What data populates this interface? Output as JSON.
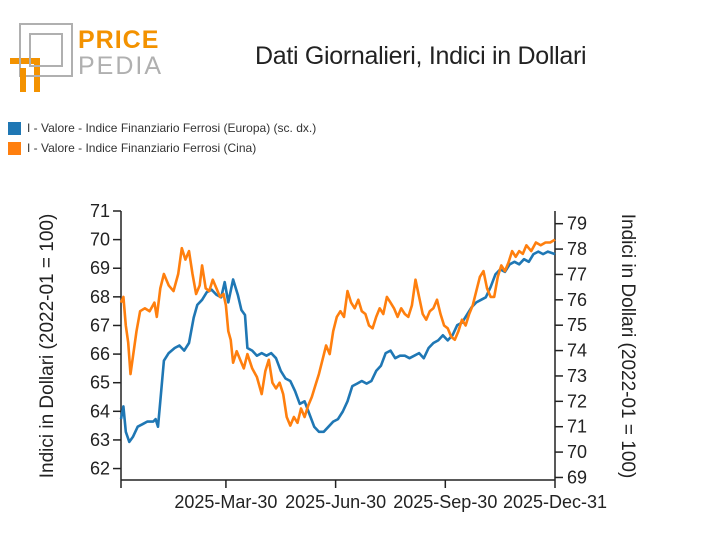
{
  "logo": {
    "word1": "PRICE",
    "word2": "PEDIA",
    "accent_color": "#f39200",
    "grey_color": "#b0b0b0"
  },
  "title": "Dati Giornalieri, Indici in Dollari",
  "legend": [
    {
      "label": "I - Valore - Indice Finanziario Ferrosi (Europa) (sc. dx.)",
      "color": "#1f77b4"
    },
    {
      "label": "I - Valore - Indice Finanziario Ferrosi (Cina)",
      "color": "#ff7f0e"
    }
  ],
  "chart_data": {
    "type": "line",
    "title": "Dati Giornalieri, Indici in Dollari",
    "xlabel": "",
    "ylabel": "Indici in Dollari (2022-01 = 100)",
    "ylabel_right": "Indici in Dollari (2022-01 = 100)",
    "x_ticks": [
      "2025-Mar-30",
      "2025-Jun-30",
      "2025-Sep-30",
      "2025-Dec-31"
    ],
    "x_range_days": [
      0,
      364
    ],
    "x_tick_days": [
      88,
      180,
      272,
      364
    ],
    "y_left_ticks": [
      62,
      63,
      64,
      65,
      66,
      67,
      68,
      69,
      70,
      71
    ],
    "ylim_left": [
      61.6,
      71
    ],
    "y_right_ticks": [
      69,
      70,
      71,
      72,
      73,
      74,
      75,
      76,
      77,
      78,
      79
    ],
    "ylim_right": [
      68.9,
      79.5
    ],
    "series": [
      {
        "name": "I - Valore - Indice Finanziario Ferrosi (Europa) (sc. dx.)",
        "axis": "right",
        "color": "#1f77b4",
        "points": [
          [
            0,
            71.3
          ],
          [
            2,
            71.8
          ],
          [
            4,
            70.8
          ],
          [
            7,
            70.4
          ],
          [
            10,
            70.6
          ],
          [
            14,
            71.0
          ],
          [
            18,
            71.1
          ],
          [
            22,
            71.2
          ],
          [
            27,
            71.2
          ],
          [
            29,
            71.3
          ],
          [
            31,
            71.0
          ],
          [
            33,
            72.0
          ],
          [
            36,
            73.6
          ],
          [
            40,
            73.9
          ],
          [
            45,
            74.1
          ],
          [
            49,
            74.2
          ],
          [
            53,
            74.0
          ],
          [
            57,
            74.3
          ],
          [
            61,
            75.3
          ],
          [
            64,
            75.8
          ],
          [
            68,
            76.0
          ],
          [
            72,
            76.3
          ],
          [
            76,
            76.4
          ],
          [
            80,
            76.2
          ],
          [
            84,
            76.1
          ],
          [
            87,
            76.7
          ],
          [
            90,
            75.9
          ],
          [
            94,
            76.8
          ],
          [
            98,
            76.2
          ],
          [
            101,
            75.6
          ],
          [
            104,
            75.4
          ],
          [
            106,
            74.1
          ],
          [
            110,
            74.0
          ],
          [
            114,
            73.8
          ],
          [
            118,
            73.9
          ],
          [
            122,
            73.8
          ],
          [
            126,
            73.9
          ],
          [
            130,
            73.7
          ],
          [
            134,
            73.2
          ],
          [
            138,
            72.9
          ],
          [
            142,
            72.8
          ],
          [
            146,
            72.4
          ],
          [
            150,
            71.9
          ],
          [
            154,
            72.0
          ],
          [
            158,
            71.5
          ],
          [
            162,
            71.0
          ],
          [
            166,
            70.8
          ],
          [
            170,
            70.8
          ],
          [
            174,
            71.0
          ],
          [
            178,
            71.2
          ],
          [
            182,
            71.3
          ],
          [
            186,
            71.6
          ],
          [
            190,
            72.0
          ],
          [
            194,
            72.6
          ],
          [
            198,
            72.7
          ],
          [
            202,
            72.8
          ],
          [
            206,
            72.7
          ],
          [
            210,
            72.8
          ],
          [
            214,
            73.2
          ],
          [
            218,
            73.4
          ],
          [
            222,
            73.9
          ],
          [
            226,
            74.0
          ],
          [
            230,
            73.7
          ],
          [
            234,
            73.8
          ],
          [
            238,
            73.8
          ],
          [
            242,
            73.7
          ],
          [
            246,
            73.8
          ],
          [
            250,
            73.9
          ],
          [
            254,
            73.7
          ],
          [
            258,
            74.1
          ],
          [
            262,
            74.3
          ],
          [
            266,
            74.4
          ],
          [
            270,
            74.6
          ],
          [
            274,
            74.4
          ],
          [
            278,
            74.6
          ],
          [
            282,
            75.0
          ],
          [
            286,
            75.1
          ],
          [
            290,
            75.4
          ],
          [
            294,
            75.7
          ],
          [
            298,
            75.9
          ],
          [
            302,
            76.0
          ],
          [
            306,
            76.1
          ],
          [
            310,
            76.5
          ],
          [
            314,
            77.0
          ],
          [
            318,
            77.2
          ],
          [
            322,
            77.1
          ],
          [
            326,
            77.4
          ],
          [
            330,
            77.5
          ],
          [
            334,
            77.4
          ],
          [
            338,
            77.6
          ],
          [
            342,
            77.5
          ],
          [
            346,
            77.8
          ],
          [
            350,
            77.9
          ],
          [
            354,
            77.8
          ],
          [
            358,
            77.9
          ],
          [
            364,
            77.8
          ]
        ]
      },
      {
        "name": "I - Valore - Indice Finanziario Ferrosi (Cina)",
        "axis": "left",
        "color": "#ff7f0e",
        "points": [
          [
            0,
            67.8
          ],
          [
            2,
            68.0
          ],
          [
            4,
            67.0
          ],
          [
            6,
            66.4
          ],
          [
            8,
            65.3
          ],
          [
            10,
            65.9
          ],
          [
            13,
            66.8
          ],
          [
            16,
            67.5
          ],
          [
            20,
            67.6
          ],
          [
            24,
            67.5
          ],
          [
            28,
            67.8
          ],
          [
            30,
            67.3
          ],
          [
            33,
            68.3
          ],
          [
            36,
            68.8
          ],
          [
            40,
            68.4
          ],
          [
            44,
            68.2
          ],
          [
            48,
            68.8
          ],
          [
            51,
            69.7
          ],
          [
            54,
            69.3
          ],
          [
            57,
            69.6
          ],
          [
            60,
            68.8
          ],
          [
            63,
            68.1
          ],
          [
            66,
            68.4
          ],
          [
            68,
            69.1
          ],
          [
            71,
            68.3
          ],
          [
            74,
            68.2
          ],
          [
            77,
            68.6
          ],
          [
            80,
            68.3
          ],
          [
            83,
            68.0
          ],
          [
            86,
            68.1
          ],
          [
            88,
            67.7
          ],
          [
            90,
            66.8
          ],
          [
            92,
            66.5
          ],
          [
            94,
            65.7
          ],
          [
            97,
            66.1
          ],
          [
            100,
            65.8
          ],
          [
            103,
            65.5
          ],
          [
            106,
            66.0
          ],
          [
            110,
            65.5
          ],
          [
            114,
            65.2
          ],
          [
            118,
            64.6
          ],
          [
            121,
            65.4
          ],
          [
            124,
            65.8
          ],
          [
            127,
            65.0
          ],
          [
            130,
            64.8
          ],
          [
            133,
            65.0
          ],
          [
            136,
            64.6
          ],
          [
            139,
            63.8
          ],
          [
            142,
            63.5
          ],
          [
            145,
            63.8
          ],
          [
            148,
            63.6
          ],
          [
            151,
            64.1
          ],
          [
            154,
            63.8
          ],
          [
            157,
            64.2
          ],
          [
            160,
            64.5
          ],
          [
            163,
            64.9
          ],
          [
            166,
            65.3
          ],
          [
            169,
            65.8
          ],
          [
            172,
            66.3
          ],
          [
            175,
            66.0
          ],
          [
            178,
            66.8
          ],
          [
            181,
            67.3
          ],
          [
            184,
            67.5
          ],
          [
            187,
            67.3
          ],
          [
            190,
            68.2
          ],
          [
            193,
            67.8
          ],
          [
            196,
            67.6
          ],
          [
            199,
            67.9
          ],
          [
            202,
            67.5
          ],
          [
            205,
            67.4
          ],
          [
            208,
            67.0
          ],
          [
            211,
            66.9
          ],
          [
            214,
            67.3
          ],
          [
            217,
            67.6
          ],
          [
            220,
            67.4
          ],
          [
            223,
            68.0
          ],
          [
            226,
            67.8
          ],
          [
            229,
            67.6
          ],
          [
            232,
            67.3
          ],
          [
            235,
            67.6
          ],
          [
            238,
            67.4
          ],
          [
            241,
            67.3
          ],
          [
            244,
            67.7
          ],
          [
            247,
            68.6
          ],
          [
            250,
            68.0
          ],
          [
            253,
            67.4
          ],
          [
            256,
            67.2
          ],
          [
            259,
            67.5
          ],
          [
            262,
            67.6
          ],
          [
            265,
            67.9
          ],
          [
            268,
            67.4
          ],
          [
            271,
            67.0
          ],
          [
            274,
            66.9
          ],
          [
            277,
            66.6
          ],
          [
            280,
            66.5
          ],
          [
            283,
            66.8
          ],
          [
            286,
            67.2
          ],
          [
            289,
            67.0
          ],
          [
            292,
            67.4
          ],
          [
            295,
            67.7
          ],
          [
            298,
            68.2
          ],
          [
            301,
            68.7
          ],
          [
            304,
            68.9
          ],
          [
            307,
            68.3
          ],
          [
            310,
            68.0
          ],
          [
            313,
            68.0
          ],
          [
            316,
            68.7
          ],
          [
            319,
            69.1
          ],
          [
            322,
            68.9
          ],
          [
            325,
            69.2
          ],
          [
            328,
            69.6
          ],
          [
            331,
            69.4
          ],
          [
            334,
            69.6
          ],
          [
            337,
            69.5
          ],
          [
            340,
            69.8
          ],
          [
            344,
            69.6
          ],
          [
            348,
            69.9
          ],
          [
            352,
            69.8
          ],
          [
            356,
            69.9
          ],
          [
            360,
            69.9
          ],
          [
            364,
            70.0
          ]
        ]
      }
    ]
  }
}
